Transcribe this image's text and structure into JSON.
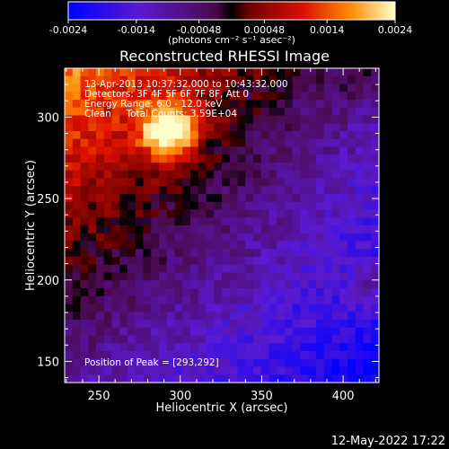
{
  "chart_data": {
    "type": "heatmap",
    "title": "Reconstructed RHESSI Image",
    "xlabel": "Heliocentric X (arcsec)",
    "ylabel": "Heliocentric Y (arcsec)",
    "xlim": [
      229,
      422
    ],
    "ylim": [
      137,
      330
    ],
    "x_ticks": [
      "250",
      "300",
      "350",
      "400"
    ],
    "x_tick_values": [
      250,
      300,
      350,
      400
    ],
    "y_ticks": [
      "150",
      "200",
      "250",
      "300"
    ],
    "y_tick_values": [
      150,
      200,
      250,
      300
    ],
    "colorbar": {
      "min": -0.0024,
      "max": 0.0024,
      "tick_labels": [
        "-0.0024",
        "-0.0014",
        "-0.00048",
        "0.00048",
        "0.0014",
        "0.0024"
      ],
      "tick_values": [
        -0.0024,
        -0.0014,
        -0.00048,
        0.00048,
        0.0014,
        0.0024
      ],
      "units_label": "(photons cm⁻² s⁻¹ asec⁻²)"
    },
    "annotations": {
      "time_range": "13-Apr-2013 10:37:32.000 to 10:43:32.000",
      "detectors": "Detectors: 3F 4F 5F 6F 7F 8F, Att 0",
      "energy_range": "Energy Range: 6.0 - 12.0 keV",
      "clean_counts": "Clean     Total Counts: 3.59E+04",
      "peak_position": "Position of Peak = [293,292]"
    },
    "peak_x": 293,
    "peak_y": 292
  },
  "footer": {
    "timestamp": "12-May-2022 17:22"
  }
}
